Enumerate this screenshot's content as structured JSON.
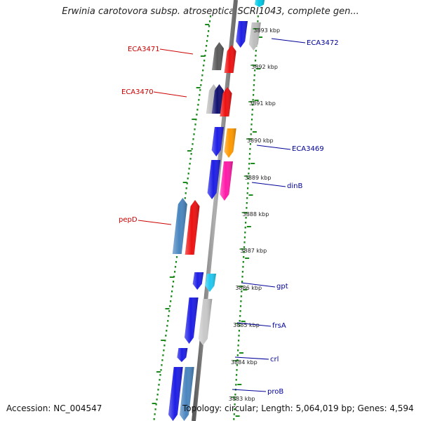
{
  "title": "Erwinia carotovora subsp. atroseptica SCRI1043, complete gen...",
  "footer": {
    "accession_label": "Accession:",
    "accession": "NC_004547",
    "topology_label": "Topology:",
    "topology": "circular",
    "length_label": "Length:",
    "length": "5,064,019 bp",
    "genes_label": "Genes:",
    "genes": "4,594"
  },
  "colors": {
    "backbone": "#888888",
    "dots": "#1a8a1a",
    "left_label": "#cc0000",
    "right_label": "#000099",
    "tick_label": "#222222"
  },
  "ticks": [
    {
      "label": "3893 kbp"
    },
    {
      "label": "3892 kbp"
    },
    {
      "label": "3891 kbp"
    },
    {
      "label": "3890 kbp"
    },
    {
      "label": "3889 kbp"
    },
    {
      "label": "3888 kbp"
    },
    {
      "label": "3887 kbp"
    },
    {
      "label": "3886 kbp"
    },
    {
      "label": "3885 kbp"
    },
    {
      "label": "3884 kbp"
    },
    {
      "label": "3883 kbp"
    }
  ],
  "gene_labels_left": [
    {
      "name": "ECA3471"
    },
    {
      "name": "ECA3470"
    },
    {
      "name": "pepD"
    }
  ],
  "gene_labels_right": [
    {
      "name": "ECA3472"
    },
    {
      "name": "ECA3469"
    },
    {
      "name": "dinB"
    },
    {
      "name": "gpt"
    },
    {
      "name": "frsA"
    },
    {
      "name": "crl"
    },
    {
      "name": "proB"
    }
  ],
  "features": [
    {
      "type": "gene",
      "color": "#1e1ee6",
      "strand": "plus"
    },
    {
      "type": "cds",
      "color": "#bdbdbd",
      "strand": "plus"
    },
    {
      "type": "gene",
      "color": "#00c8e6",
      "strand": "plus"
    },
    {
      "type": "gene",
      "color": "#5a5a5a",
      "strand": "minus"
    },
    {
      "type": "cds",
      "color": "#ee1111",
      "strand": "minus"
    },
    {
      "type": "gene",
      "color": "#bdbdbd",
      "strand": "minus"
    },
    {
      "type": "gene",
      "color": "#101070",
      "strand": "minus"
    },
    {
      "type": "cds",
      "color": "#ee1111",
      "strand": "minus"
    },
    {
      "type": "gene",
      "color": "#1e1ee6",
      "strand": "plus"
    },
    {
      "type": "cds",
      "color": "#ff9900",
      "strand": "plus"
    },
    {
      "type": "gene",
      "color": "#1e1ee6",
      "strand": "plus"
    },
    {
      "type": "cds",
      "color": "#ff1aa8",
      "strand": "plus"
    },
    {
      "type": "gene",
      "color": "#4a86c0",
      "strand": "minus"
    },
    {
      "type": "cds",
      "color": "#ee1111",
      "strand": "minus"
    },
    {
      "type": "gene",
      "color": "#1e1ee6",
      "strand": "plus"
    },
    {
      "type": "cds",
      "color": "#22c8f0",
      "strand": "plus"
    },
    {
      "type": "gene",
      "color": "#1e1ee6",
      "strand": "plus"
    },
    {
      "type": "cds",
      "color": "#c8c8c8",
      "strand": "plus"
    },
    {
      "type": "gene",
      "color": "#1e1ee6",
      "strand": "plus"
    },
    {
      "type": "gene",
      "color": "#1e1ee6",
      "strand": "plus"
    },
    {
      "type": "cds",
      "color": "#4a86c0",
      "strand": "plus"
    }
  ]
}
